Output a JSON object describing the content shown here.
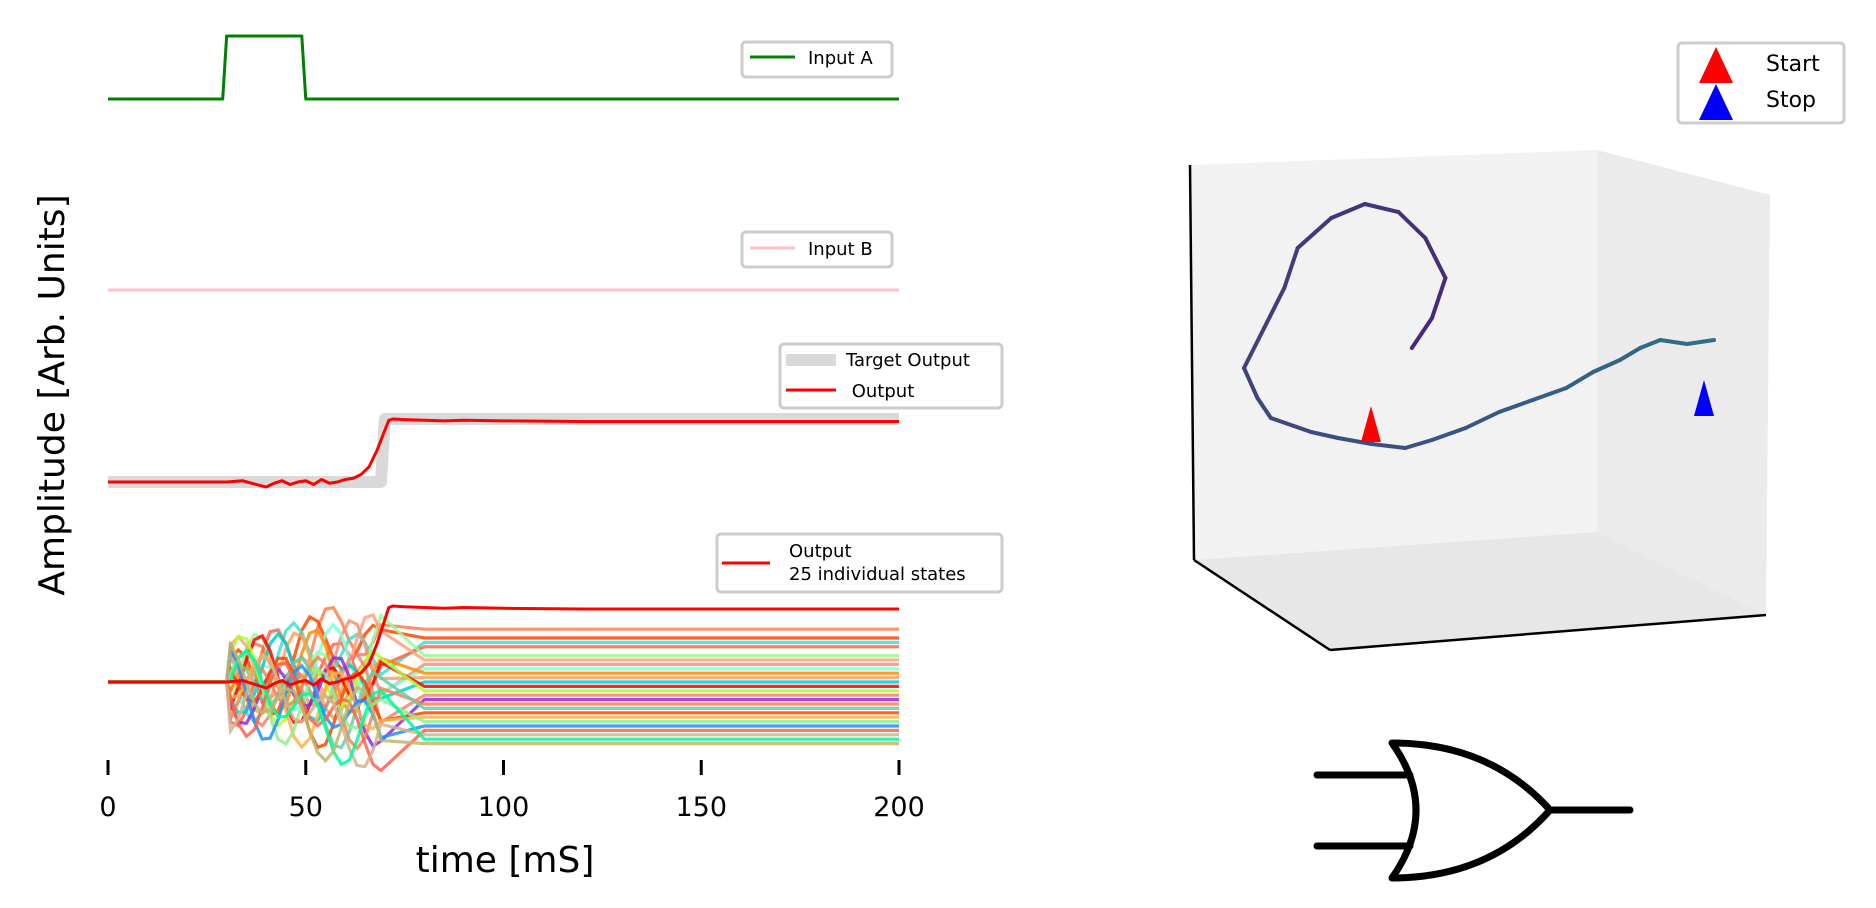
{
  "chart_data": [
    {
      "type": "line",
      "panel": "input-a",
      "series": [
        {
          "name": "Input A",
          "color": "#008000",
          "x": [
            0,
            29,
            30,
            49,
            50,
            200
          ],
          "y": [
            0,
            0,
            1,
            1,
            0,
            0
          ]
        }
      ],
      "legend": "top-right"
    },
    {
      "type": "line",
      "panel": "input-b",
      "series": [
        {
          "name": "Input B",
          "color": "#ffc0cb",
          "x": [
            0,
            200
          ],
          "y": [
            0,
            0
          ]
        }
      ],
      "legend": "top-right"
    },
    {
      "type": "line",
      "panel": "output",
      "series": [
        {
          "name": "Target Output",
          "color": "#d9d9d9",
          "x": [
            0,
            69,
            70,
            200
          ],
          "y": [
            0,
            0,
            1,
            1
          ]
        },
        {
          "name": " Output",
          "color": "#ff0000",
          "x": [
            0,
            30,
            34,
            37,
            40,
            42,
            44,
            46,
            48,
            50,
            52,
            54,
            56,
            58,
            60,
            62,
            64,
            66,
            68,
            70,
            71,
            72,
            75,
            80,
            85,
            90,
            100,
            120,
            150,
            200
          ],
          "y": [
            0,
            0,
            0.02,
            -0.03,
            -0.08,
            -0.02,
            0.02,
            -0.04,
            0.0,
            0.02,
            -0.04,
            0.04,
            -0.02,
            0.0,
            0.04,
            0.06,
            0.12,
            0.24,
            0.5,
            0.82,
            0.98,
            1.0,
            0.99,
            0.98,
            0.97,
            0.98,
            0.97,
            0.96,
            0.96,
            0.96
          ]
        }
      ],
      "legend": "top-right"
    },
    {
      "type": "line",
      "panel": "states",
      "series": [
        {
          "name": "Output\n25 individual states",
          "color": "#ff0000",
          "x": [
            0,
            30,
            34,
            37,
            40,
            42,
            44,
            46,
            48,
            50,
            52,
            54,
            56,
            58,
            60,
            62,
            64,
            66,
            68,
            70,
            71,
            72,
            75,
            80,
            85,
            90,
            100,
            120,
            150,
            200
          ],
          "y": [
            0,
            0,
            0.02,
            -0.03,
            -0.08,
            -0.02,
            0.02,
            -0.04,
            0.0,
            0.02,
            -0.04,
            0.04,
            -0.02,
            0.0,
            0.04,
            0.06,
            0.12,
            0.24,
            0.5,
            0.82,
            0.98,
            1.0,
            0.99,
            0.98,
            0.97,
            0.98,
            0.97,
            0.96,
            0.96,
            0.96
          ]
        }
      ],
      "state_finals": [
        0.6,
        0.5,
        0.45,
        0.4,
        0.3,
        0.25,
        0.2,
        0.15,
        0.1,
        0.05,
        0.0,
        -0.05,
        -0.1,
        -0.15,
        -0.2,
        -0.25,
        -0.3,
        -0.35,
        -0.4,
        -0.45,
        -0.5,
        -0.55,
        -0.6,
        -0.65,
        -0.7
      ],
      "state_colors": [
        "#ff7f50",
        "#ff4500",
        "#40e0d0",
        "#ff6347",
        "#98fb98",
        "#ffa07a",
        "#e9967a",
        "#7fffd4",
        "#ff8c00",
        "#f4a460",
        "#00ced1",
        "#ff0000",
        "#adff2f",
        "#fa8072",
        "#8a2be2",
        "#ff7f50",
        "#66cdaa",
        "#ff4500",
        "#ffb347",
        "#90ee90",
        "#1e90ff",
        "#ff6347",
        "#d2b48c",
        "#00fa9a",
        "#bdb76b"
      ],
      "legend": "top-right"
    },
    {
      "type": "line",
      "panel": "trajectory-3d",
      "series": [
        {
          "name": "trajectory",
          "x": [
            0.35,
            0.38,
            0.4,
            0.37,
            0.33,
            0.28,
            0.23,
            0.18,
            0.16,
            0.13,
            0.1,
            0.12,
            0.14,
            0.2,
            0.24,
            0.29,
            0.34,
            0.38,
            0.43,
            0.48,
            0.53,
            0.58,
            0.62,
            0.66,
            0.69,
            0.72,
            0.76,
            0.8
          ],
          "y": [
            0.2,
            0.35,
            0.55,
            0.75,
            0.88,
            0.92,
            0.85,
            0.7,
            0.5,
            0.3,
            0.1,
            -0.05,
            -0.15,
            -0.22,
            -0.25,
            -0.28,
            -0.3,
            -0.26,
            -0.2,
            -0.12,
            -0.06,
            0.0,
            0.08,
            0.14,
            0.2,
            0.24,
            0.22,
            0.24
          ],
          "z": [
            0,
            0,
            0,
            0,
            0,
            0,
            0,
            0,
            0,
            0,
            0,
            0,
            0,
            0,
            0,
            0,
            0,
            0,
            0,
            0,
            0,
            0,
            0,
            0,
            0,
            0,
            0,
            0
          ]
        }
      ],
      "legend_entries": [
        {
          "label": "Start",
          "color": "#ff0000"
        },
        {
          "label": "Stop",
          "color": "#0000ff"
        }
      ],
      "legend": "top-right"
    }
  ],
  "axes": {
    "ylabel": "Amplitude [Arb. Units]",
    "xlabel": "time [mS]",
    "xlim": [
      0,
      200
    ],
    "xticks": [
      "0",
      "50",
      "100",
      "150",
      "200"
    ]
  },
  "icon": "or-gate-icon"
}
